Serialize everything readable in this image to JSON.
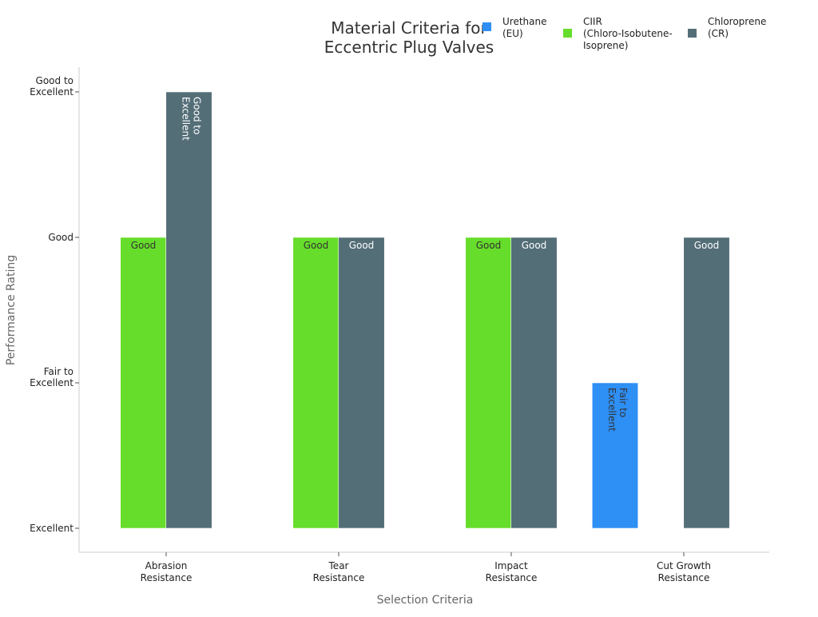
{
  "chart_data": {
    "type": "bar",
    "title": "Material Criteria for\nEccentric Plug Valves",
    "xlabel": "Selection Criteria",
    "ylabel": "Performance Rating",
    "categories": [
      "Abrasion\nResistance",
      "Tear\nResistance",
      "Impact\nResistance",
      "Cut Growth\nResistance"
    ],
    "y_levels": [
      "Excellent",
      "Fair to\nExcellent",
      "Good",
      "Good to\nExcellent"
    ],
    "series": [
      {
        "name": "Urethane\n(EU)",
        "color": "#2e8ff5",
        "values": [
          null,
          null,
          null,
          "Fair to\nExcellent"
        ]
      },
      {
        "name": "CIIR\n(Chloro-Isobutene-\nIsoprene)",
        "color": "#66dd2a",
        "values": [
          "Good",
          "Good",
          "Good",
          null
        ]
      },
      {
        "name": "Chloroprene\n(CR)",
        "color": "#546e78",
        "values": [
          "Good to\nExcellent",
          "Good",
          "Good",
          "Good"
        ]
      }
    ],
    "legend": "top-right",
    "grid": false
  }
}
